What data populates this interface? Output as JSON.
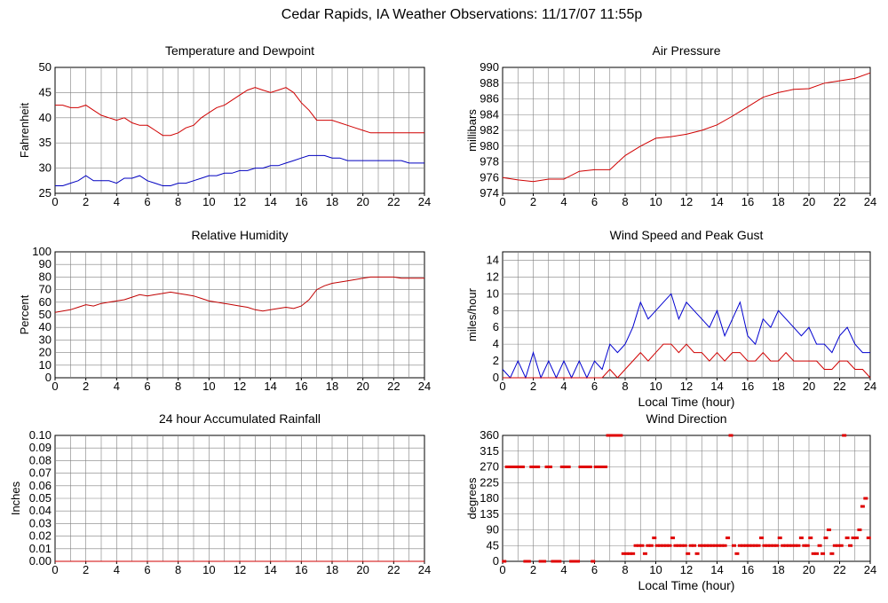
{
  "page": {
    "title": "Cedar Rapids, IA Weather Observations: 11/17/07 11:55p"
  },
  "colors": {
    "temperature": "#d00000",
    "dewpoint": "#0000c0",
    "pressure": "#d00000",
    "humidity": "#c00000",
    "wind_speed": "#0000d0",
    "peak_gust": "#d00000",
    "rainfall": "#d00000",
    "wind_direction": "#e00000",
    "grid": "#808080"
  },
  "chart_data": [
    {
      "id": "temp",
      "type": "line",
      "title": "Temperature and Dewpoint",
      "xlabel": "",
      "ylabel": "Fahrenheit",
      "xlim": [
        0,
        24
      ],
      "ylim": [
        25,
        50
      ],
      "xticks": [
        "0",
        "2",
        "4",
        "6",
        "8",
        "10",
        "12",
        "14",
        "16",
        "18",
        "20",
        "22",
        "24"
      ],
      "yticks": [
        "25",
        "30",
        "35",
        "40",
        "45",
        "50"
      ],
      "grid": true,
      "series": [
        {
          "color": "#d00000",
          "x": [
            0,
            0.5,
            1,
            1.5,
            2,
            2.5,
            3,
            3.5,
            4,
            4.5,
            5,
            5.5,
            6,
            6.5,
            7,
            7.5,
            8,
            8.5,
            9,
            9.5,
            10,
            10.5,
            11,
            11.5,
            12,
            12.5,
            13,
            13.5,
            14,
            14.5,
            15,
            15.5,
            16,
            16.5,
            17,
            17.5,
            18,
            18.5,
            19,
            19.5,
            20,
            20.5,
            21,
            21.5,
            22,
            22.5,
            23,
            23.5,
            24
          ],
          "y": [
            42.5,
            42.5,
            42,
            42,
            42.5,
            41.5,
            40.5,
            40,
            39.5,
            40,
            39,
            38.5,
            38.5,
            37.5,
            36.5,
            36.5,
            37,
            38,
            38.5,
            40,
            41,
            42,
            42.5,
            43.5,
            44.5,
            45.5,
            46,
            45.5,
            45,
            45.5,
            46,
            45,
            43,
            41.5,
            39.5,
            39.5,
            39.5,
            39,
            38.5,
            38,
            37.5,
            37,
            37,
            37,
            37,
            37,
            37,
            37,
            37
          ]
        },
        {
          "color": "#0000c0",
          "x": [
            0,
            0.5,
            1,
            1.5,
            2,
            2.5,
            3,
            3.5,
            4,
            4.5,
            5,
            5.5,
            6,
            6.5,
            7,
            7.5,
            8,
            8.5,
            9,
            9.5,
            10,
            10.5,
            11,
            11.5,
            12,
            12.5,
            13,
            13.5,
            14,
            14.5,
            15,
            15.5,
            16,
            16.5,
            17,
            17.5,
            18,
            18.5,
            19,
            19.5,
            20,
            20.5,
            21,
            21.5,
            22,
            22.5,
            23,
            23.5,
            24
          ],
          "y": [
            26.5,
            26.5,
            27,
            27.5,
            28.5,
            27.5,
            27.5,
            27.5,
            27,
            28,
            28,
            28.5,
            27.5,
            27,
            26.5,
            26.5,
            27,
            27,
            27.5,
            28,
            28.5,
            28.5,
            29,
            29,
            29.5,
            29.5,
            30,
            30,
            30.5,
            30.5,
            31,
            31.5,
            32,
            32.5,
            32.5,
            32.5,
            32,
            32,
            31.5,
            31.5,
            31.5,
            31.5,
            31.5,
            31.5,
            31.5,
            31.5,
            31,
            31,
            31
          ]
        }
      ]
    },
    {
      "id": "pres",
      "type": "line",
      "title": "Air Pressure",
      "xlabel": "",
      "ylabel": "millibars",
      "xlim": [
        0,
        24
      ],
      "ylim": [
        974,
        990
      ],
      "xticks": [
        "0",
        "2",
        "4",
        "6",
        "8",
        "10",
        "12",
        "14",
        "16",
        "18",
        "20",
        "22",
        "24"
      ],
      "yticks": [
        "974",
        "976",
        "978",
        "980",
        "982",
        "984",
        "986",
        "988",
        "990"
      ],
      "grid": true,
      "series": [
        {
          "color": "#d00000",
          "x": [
            0,
            1,
            2,
            3,
            4,
            5,
            6,
            7,
            8,
            9,
            10,
            11,
            12,
            13,
            14,
            15,
            16,
            17,
            18,
            19,
            20,
            21,
            22,
            23,
            24
          ],
          "y": [
            976,
            975.7,
            975.5,
            975.8,
            975.8,
            976.8,
            977,
            977,
            978.8,
            980,
            981,
            981.2,
            981.5,
            982,
            982.7,
            983.8,
            985,
            986.2,
            986.8,
            987.2,
            987.3,
            988,
            988.3,
            988.6,
            989.3
          ]
        }
      ]
    },
    {
      "id": "hum",
      "type": "line",
      "title": "Relative Humidity",
      "xlabel": "",
      "ylabel": "Percent",
      "xlim": [
        0,
        24
      ],
      "ylim": [
        0,
        100
      ],
      "xticks": [
        "0",
        "2",
        "4",
        "6",
        "8",
        "10",
        "12",
        "14",
        "16",
        "18",
        "20",
        "22",
        "24"
      ],
      "yticks": [
        "0",
        "10",
        "20",
        "30",
        "40",
        "50",
        "60",
        "70",
        "80",
        "90",
        "100"
      ],
      "grid": true,
      "series": [
        {
          "color": "#c00000",
          "x": [
            0,
            0.5,
            1,
            1.5,
            2,
            2.5,
            3,
            3.5,
            4,
            4.5,
            5,
            5.5,
            6,
            6.5,
            7,
            7.5,
            8,
            8.5,
            9,
            9.5,
            10,
            10.5,
            11,
            11.5,
            12,
            12.5,
            13,
            13.5,
            14,
            14.5,
            15,
            15.5,
            16,
            16.5,
            17,
            17.5,
            18,
            18.5,
            19,
            19.5,
            20,
            20.5,
            21,
            21.5,
            22,
            22.5,
            23,
            23.5,
            24
          ],
          "y": [
            52,
            53,
            54,
            56,
            58,
            57,
            59,
            60,
            61,
            62,
            64,
            66,
            65,
            66,
            67,
            68,
            67,
            66,
            65,
            63,
            61,
            60,
            59,
            58,
            57,
            56,
            54,
            53,
            54,
            55,
            56,
            55,
            57,
            62,
            70,
            73,
            75,
            76,
            77,
            78,
            79,
            80,
            80,
            80,
            80,
            79,
            79,
            79,
            79
          ]
        }
      ]
    },
    {
      "id": "wind",
      "type": "line",
      "title": "Wind Speed and Peak Gust",
      "xlabel": "Local Time (hour)",
      "ylabel": "miles/hour",
      "xlim": [
        0,
        24
      ],
      "ylim": [
        0,
        15
      ],
      "xticks": [
        "0",
        "2",
        "4",
        "6",
        "8",
        "10",
        "12",
        "14",
        "16",
        "18",
        "20",
        "22",
        "24"
      ],
      "yticks": [
        "0",
        "2",
        "4",
        "6",
        "8",
        "10",
        "12",
        "14"
      ],
      "grid": true,
      "series": [
        {
          "color": "#0000d0",
          "x": [
            0,
            0.5,
            1,
            1.5,
            2,
            2.5,
            3,
            3.5,
            4,
            4.5,
            5,
            5.5,
            6,
            6.5,
            7,
            7.5,
            8,
            8.5,
            9,
            9.5,
            10,
            10.5,
            11,
            11.5,
            12,
            12.5,
            13,
            13.5,
            14,
            14.5,
            15,
            15.5,
            16,
            16.5,
            17,
            17.5,
            18,
            18.5,
            19,
            19.5,
            20,
            20.5,
            21,
            21.5,
            22,
            22.5,
            23,
            23.5,
            24
          ],
          "y": [
            1,
            0,
            2,
            0,
            3,
            0,
            2,
            0,
            2,
            0,
            2,
            0,
            2,
            1,
            4,
            3,
            4,
            6,
            9,
            7,
            8,
            9,
            10,
            7,
            9,
            8,
            7,
            6,
            8,
            5,
            7,
            9,
            5,
            4,
            7,
            6,
            8,
            7,
            6,
            5,
            6,
            4,
            4,
            3,
            5,
            6,
            4,
            3,
            3
          ]
        },
        {
          "color": "#d00000",
          "x": [
            0,
            0.5,
            1,
            1.5,
            2,
            2.5,
            3,
            3.5,
            4,
            4.5,
            5,
            5.5,
            6,
            6.5,
            7,
            7.5,
            8,
            8.5,
            9,
            9.5,
            10,
            10.5,
            11,
            11.5,
            12,
            12.5,
            13,
            13.5,
            14,
            14.5,
            15,
            15.5,
            16,
            16.5,
            17,
            17.5,
            18,
            18.5,
            19,
            19.5,
            20,
            20.5,
            21,
            21.5,
            22,
            22.5,
            23,
            23.5,
            24
          ],
          "y": [
            0,
            0,
            0,
            0,
            0,
            0,
            0,
            0,
            0,
            0,
            0,
            0,
            0,
            0,
            1,
            0,
            1,
            2,
            3,
            2,
            3,
            4,
            4,
            3,
            4,
            3,
            3,
            2,
            3,
            2,
            3,
            3,
            2,
            2,
            3,
            2,
            2,
            3,
            2,
            2,
            2,
            2,
            1,
            1,
            2,
            2,
            1,
            1,
            0
          ]
        }
      ]
    },
    {
      "id": "rain",
      "type": "line",
      "title": "24 hour Accumulated Rainfall",
      "xlabel": "",
      "ylabel": "Inches",
      "xlim": [
        0,
        24
      ],
      "ylim": [
        0,
        0.1
      ],
      "xticks": [
        "0",
        "2",
        "4",
        "6",
        "8",
        "10",
        "12",
        "14",
        "16",
        "18",
        "20",
        "22",
        "24"
      ],
      "yticks": [
        "0.00",
        "0.01",
        "0.02",
        "0.03",
        "0.04",
        "0.05",
        "0.06",
        "0.07",
        "0.08",
        "0.09",
        "0.10"
      ],
      "grid": true,
      "series": [
        {
          "color": "#d00000",
          "x": [
            0,
            24
          ],
          "y": [
            0,
            0
          ]
        }
      ]
    },
    {
      "id": "dir",
      "type": "scatter",
      "title": "Wind Direction",
      "xlabel": "Local Time (hour)",
      "ylabel": "degrees",
      "xlim": [
        0,
        24
      ],
      "ylim": [
        0,
        360
      ],
      "xticks": [
        "0",
        "2",
        "4",
        "6",
        "8",
        "10",
        "12",
        "14",
        "16",
        "18",
        "20",
        "22",
        "24"
      ],
      "yticks": [
        "0",
        "45",
        "90",
        "135",
        "180",
        "225",
        "270",
        "315",
        "360"
      ],
      "grid": true,
      "series": [
        {
          "color": "#e00000",
          "x": [
            0.1,
            0.3,
            0.5,
            0.7,
            0.9,
            1.1,
            1.3,
            1.5,
            1.7,
            1.9,
            2.1,
            2.3,
            2.5,
            2.7,
            2.9,
            3.1,
            3.3,
            3.5,
            3.7,
            3.9,
            4.1,
            4.3,
            4.5,
            4.7,
            4.9,
            5.1,
            5.3,
            5.5,
            5.7,
            5.9,
            6.1,
            6.3,
            6.5,
            6.7,
            6.9,
            7.1,
            7.3,
            7.5,
            7.7,
            7.9,
            8.1,
            8.3,
            8.5,
            8.7,
            8.9,
            9.1,
            9.3,
            9.5,
            9.7,
            9.9,
            10.1,
            10.3,
            10.5,
            10.7,
            10.9,
            11.1,
            11.3,
            11.5,
            11.7,
            11.9,
            12.1,
            12.3,
            12.5,
            12.7,
            12.9,
            13.1,
            13.3,
            13.5,
            13.7,
            13.9,
            14.1,
            14.3,
            14.5,
            14.7,
            14.9,
            15.1,
            15.3,
            15.5,
            15.7,
            15.9,
            16.1,
            16.3,
            16.5,
            16.7,
            16.9,
            17.1,
            17.3,
            17.5,
            17.7,
            17.9,
            18.1,
            18.3,
            18.5,
            18.7,
            18.9,
            19.1,
            19.3,
            19.5,
            19.7,
            19.9,
            20.1,
            20.3,
            20.5,
            20.7,
            20.9,
            21.1,
            21.3,
            21.5,
            21.7,
            21.9,
            22.1,
            22.3,
            22.5,
            22.7,
            22.9,
            23.1,
            23.3,
            23.5,
            23.7,
            23.9
          ],
          "y": [
            0,
            270,
            270,
            270,
            270,
            270,
            270,
            0,
            0,
            270,
            270,
            270,
            0,
            0,
            270,
            270,
            0,
            0,
            0,
            270,
            270,
            270,
            0,
            0,
            0,
            270,
            270,
            270,
            270,
            0,
            270,
            270,
            270,
            270,
            360,
            360,
            360,
            360,
            360,
            22,
            22,
            22,
            22,
            45,
            45,
            45,
            22,
            45,
            45,
            67,
            45,
            45,
            45,
            45,
            45,
            67,
            45,
            45,
            45,
            45,
            22,
            45,
            45,
            22,
            45,
            45,
            45,
            45,
            45,
            45,
            45,
            45,
            45,
            67,
            360,
            45,
            22,
            45,
            45,
            45,
            45,
            45,
            45,
            45,
            67,
            45,
            45,
            45,
            45,
            45,
            67,
            45,
            45,
            45,
            45,
            45,
            45,
            67,
            45,
            45,
            67,
            22,
            22,
            45,
            22,
            67,
            90,
            22,
            45,
            45,
            45,
            360,
            67,
            45,
            67,
            67,
            90,
            157,
            180,
            67
          ]
        }
      ]
    }
  ]
}
